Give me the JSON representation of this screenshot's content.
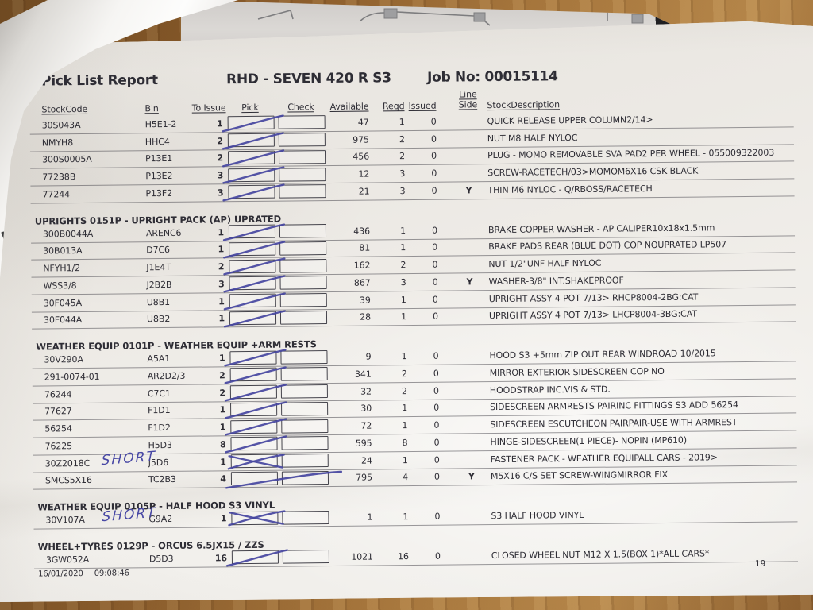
{
  "document": {
    "report_title": "Pick List Report",
    "vehicle_title": "RHD - SEVEN 420 R S3",
    "job_label": "Job No: 00015114",
    "footer": {
      "date": "16/01/2020",
      "time": "09:08:46",
      "page_number": "19"
    }
  },
  "annotations": {
    "ink_color": "#45459f",
    "short_note": "SHORT"
  },
  "table": {
    "headers": {
      "stock_code": "StockCode",
      "bin": "Bin",
      "to_issue": "To Issue",
      "pick": "Pick",
      "check": "Check",
      "available": "Available",
      "reqd": "Reqd",
      "issued": "Issued",
      "line": "Line",
      "side": "Side",
      "description": "StockDescription"
    },
    "groups": [
      {
        "section_title": "",
        "rows": [
          {
            "stock_code": "30S043A",
            "bin": "H5E1-2",
            "to_issue": "1",
            "available": "47",
            "reqd": "1",
            "issued": "0",
            "line_side": "",
            "description": "QUICK RELEASE UPPER COLUMN2/14>",
            "pick_mark": "slash",
            "note": ""
          },
          {
            "stock_code": "NMYH8",
            "bin": "HHC4",
            "to_issue": "2",
            "available": "975",
            "reqd": "2",
            "issued": "0",
            "line_side": "",
            "description": "NUT M8 HALF NYLOC",
            "pick_mark": "slash",
            "note": ""
          },
          {
            "stock_code": "300S0005A",
            "bin": "P13E1",
            "to_issue": "2",
            "available": "456",
            "reqd": "2",
            "issued": "0",
            "line_side": "",
            "description": "PLUG - MOMO REMOVABLE SVA PAD2 PER WHEEL - 055009322003",
            "pick_mark": "slash",
            "note": ""
          },
          {
            "stock_code": "77238B",
            "bin": "P13E2",
            "to_issue": "3",
            "available": "12",
            "reqd": "3",
            "issued": "0",
            "line_side": "",
            "description": "SCREW-RACETECH/03>MOMOM6X16 CSK BLACK",
            "pick_mark": "slash",
            "note": ""
          },
          {
            "stock_code": "77244",
            "bin": "P13F2",
            "to_issue": "3",
            "available": "21",
            "reqd": "3",
            "issued": "0",
            "line_side": "Y",
            "description": "THIN M6 NYLOC - Q/RBOSS/RACETECH",
            "pick_mark": "slash",
            "note": ""
          }
        ]
      },
      {
        "section_title": "UPRIGHTS 0151P - UPRIGHT PACK (AP) UPRATED",
        "rows": [
          {
            "stock_code": "300B0044A",
            "bin": "ARENC6",
            "to_issue": "1",
            "available": "436",
            "reqd": "1",
            "issued": "0",
            "line_side": "",
            "description": "BRAKE COPPER WASHER - AP CALIPER10x18x1.5mm",
            "pick_mark": "slash",
            "note": ""
          },
          {
            "stock_code": "30B013A",
            "bin": "D7C6",
            "to_issue": "1",
            "available": "81",
            "reqd": "1",
            "issued": "0",
            "line_side": "",
            "description": "BRAKE PADS REAR (BLUE DOT) COP NOUPRATED LP507",
            "pick_mark": "slash",
            "note": ""
          },
          {
            "stock_code": "NFYH1/2",
            "bin": "J1E4T",
            "to_issue": "2",
            "available": "162",
            "reqd": "2",
            "issued": "0",
            "line_side": "",
            "description": "NUT 1/2\"UNF HALF NYLOC",
            "pick_mark": "slash",
            "note": ""
          },
          {
            "stock_code": "WSS3/8",
            "bin": "J2B2B",
            "to_issue": "3",
            "available": "867",
            "reqd": "3",
            "issued": "0",
            "line_side": "Y",
            "description": "WASHER-3/8\" INT.SHAKEPROOF",
            "pick_mark": "slash",
            "note": ""
          },
          {
            "stock_code": "30F045A",
            "bin": "U8B1",
            "to_issue": "1",
            "available": "39",
            "reqd": "1",
            "issued": "0",
            "line_side": "",
            "description": "UPRIGHT ASSY 4 POT 7/13> RHCP8004-2BG:CAT",
            "pick_mark": "slash",
            "note": ""
          },
          {
            "stock_code": "30F044A",
            "bin": "U8B2",
            "to_issue": "1",
            "available": "28",
            "reqd": "1",
            "issued": "0",
            "line_side": "",
            "description": "UPRIGHT ASSY 4 POT 7/13> LHCP8004-3BG:CAT",
            "pick_mark": "slash",
            "note": ""
          }
        ]
      },
      {
        "section_title": "WEATHER EQUIP 0101P - WEATHER EQUIP +ARM RESTS",
        "rows": [
          {
            "stock_code": "30V290A",
            "bin": "A5A1",
            "to_issue": "1",
            "available": "9",
            "reqd": "1",
            "issued": "0",
            "line_side": "",
            "description": "HOOD S3 +5mm ZIP OUT REAR WINDROAD 10/2015",
            "pick_mark": "slash",
            "note": ""
          },
          {
            "stock_code": "291-0074-01",
            "bin": "AR2D2/3",
            "to_issue": "2",
            "available": "341",
            "reqd": "2",
            "issued": "0",
            "line_side": "",
            "description": "MIRROR EXTERIOR SIDESCREEN COP NO",
            "pick_mark": "slash",
            "note": ""
          },
          {
            "stock_code": "76244",
            "bin": "C7C1",
            "to_issue": "2",
            "available": "32",
            "reqd": "2",
            "issued": "0",
            "line_side": "",
            "description": "HOODSTRAP INC.VIS & STD.",
            "pick_mark": "slash",
            "note": ""
          },
          {
            "stock_code": "77627",
            "bin": "F1D1",
            "to_issue": "1",
            "available": "30",
            "reqd": "1",
            "issued": "0",
            "line_side": "",
            "description": "SIDESCREEN ARMRESTS PAIRINC FITTINGS S3 ADD 56254",
            "pick_mark": "slash",
            "note": ""
          },
          {
            "stock_code": "56254",
            "bin": "F1D2",
            "to_issue": "1",
            "available": "72",
            "reqd": "1",
            "issued": "0",
            "line_side": "",
            "description": "SIDESCREEN ESCUTCHEON PAIRPAIR-USE WITH ARMREST",
            "pick_mark": "slash",
            "note": ""
          },
          {
            "stock_code": "76225",
            "bin": "H5D3",
            "to_issue": "8",
            "available": "595",
            "reqd": "8",
            "issued": "0",
            "line_side": "",
            "description": "HINGE-SIDESCREEN(1 PIECE)- NOPIN (MP610)",
            "pick_mark": "slash",
            "note": ""
          },
          {
            "stock_code": "30Z2018C",
            "bin": "J5D6",
            "to_issue": "1",
            "available": "24",
            "reqd": "1",
            "issued": "0",
            "line_side": "",
            "description": "FASTENER PACK - WEATHER EQUIPALL CARS - 2019>",
            "pick_mark": "cross",
            "note": "SHORT"
          },
          {
            "stock_code": "SMCS5X16",
            "bin": "TC2B3",
            "to_issue": "4",
            "available": "795",
            "reqd": "4",
            "issued": "0",
            "line_side": "Y",
            "description": "M5X16 C/S SET SCREW-WINGMIRROR FIX",
            "pick_mark": "slash-long",
            "note": ""
          }
        ]
      },
      {
        "section_title": "WEATHER EQUIP 0105P - HALF HOOD S3 VINYL",
        "rows": [
          {
            "stock_code": "30V107A",
            "bin": "G9A2",
            "to_issue": "1",
            "available": "1",
            "reqd": "1",
            "issued": "0",
            "line_side": "",
            "description": "S3 HALF HOOD VINYL",
            "pick_mark": "cross",
            "note": "SHORT"
          }
        ]
      },
      {
        "section_title": "WHEEL+TYRES 0129P - ORCUS 6.5JX15 / ZZS",
        "rows": [
          {
            "stock_code": "3GW052A",
            "bin": "D5D3",
            "to_issue": "16",
            "available": "1021",
            "reqd": "16",
            "issued": "0",
            "line_side": "",
            "description": "CLOSED WHEEL NUT M12 X 1.5(BOX 1)*ALL CARS*",
            "pick_mark": "slash",
            "note": ""
          }
        ]
      }
    ]
  }
}
